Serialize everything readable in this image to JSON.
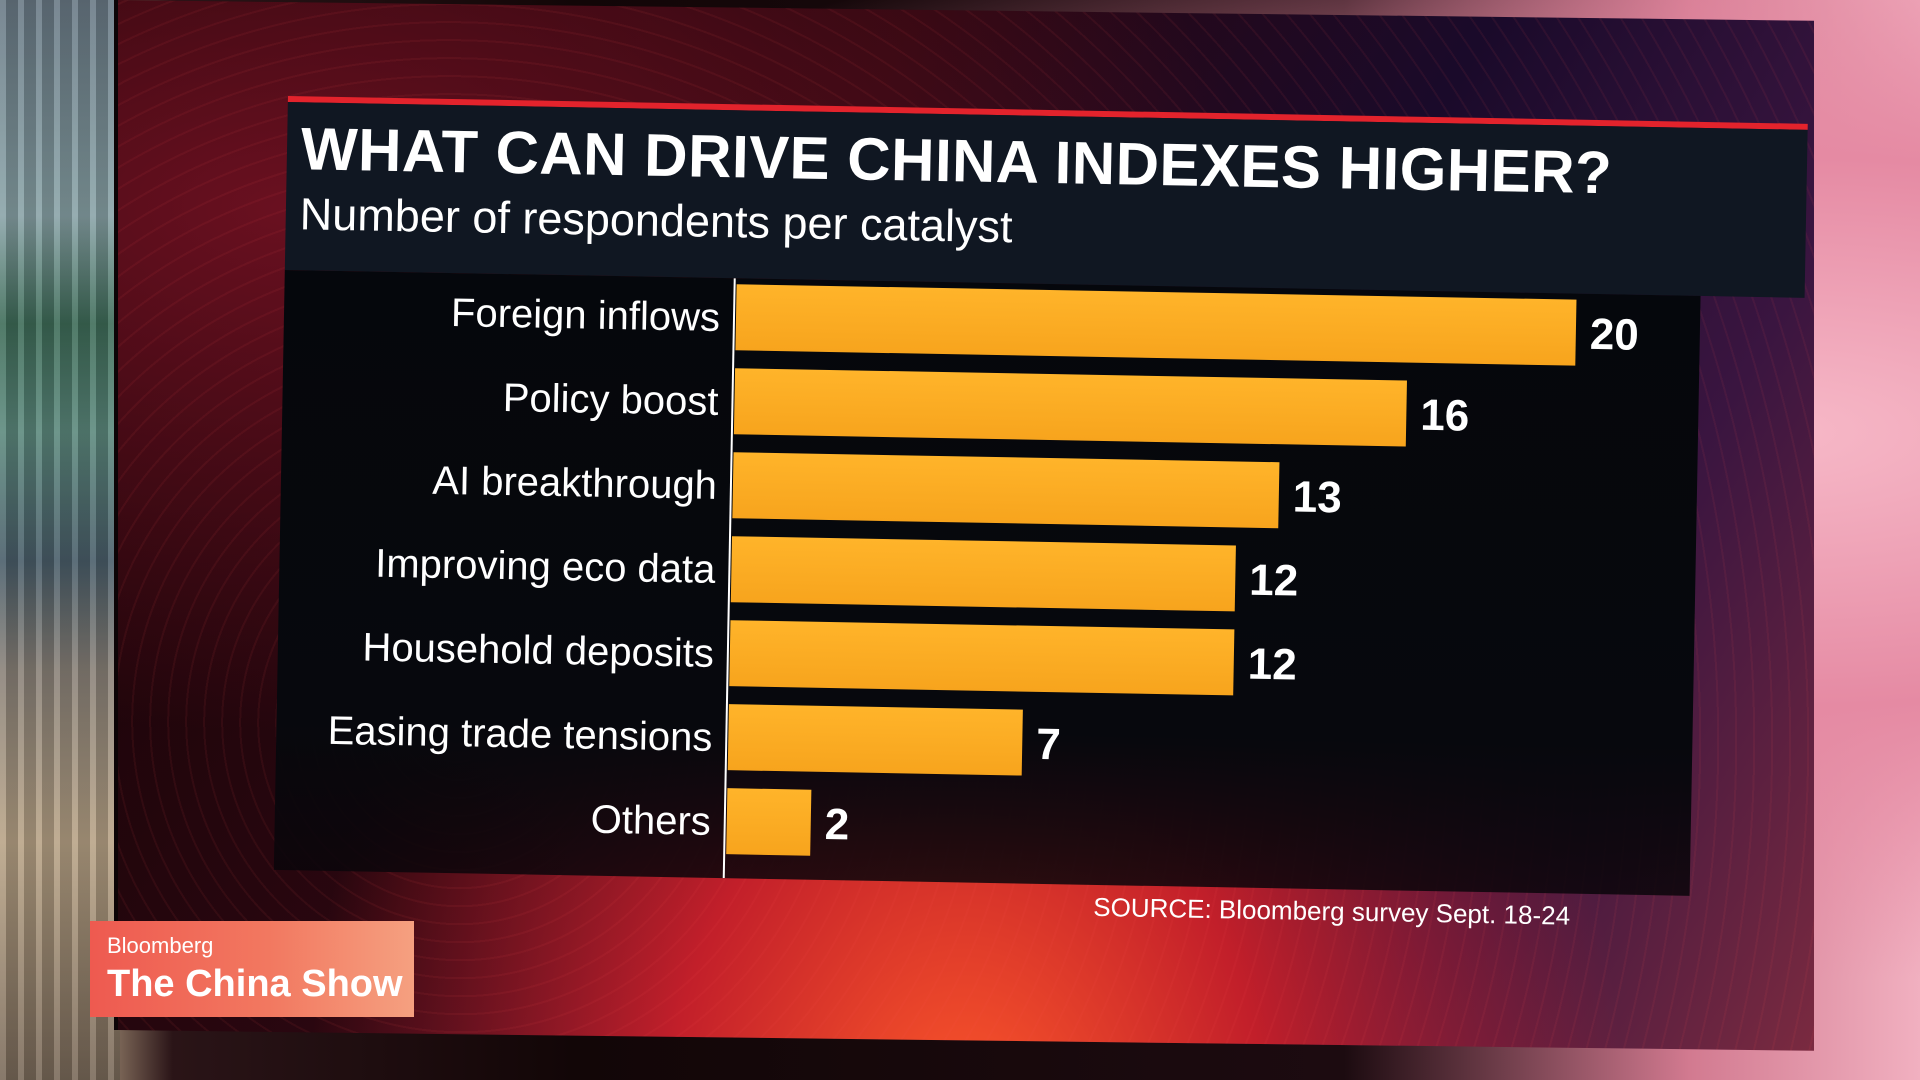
{
  "chart_data": {
    "type": "bar",
    "orientation": "horizontal",
    "title": "WHAT CAN DRIVE CHINA INDEXES HIGHER?",
    "subtitle": "Number of respondents per catalyst",
    "categories": [
      "Foreign inflows",
      "Policy boost",
      "AI breakthrough",
      "Improving eco data",
      "Household deposits",
      "Easing trade tensions",
      "Others"
    ],
    "values": [
      20,
      16,
      13,
      12,
      12,
      7,
      2
    ],
    "data_labels": [
      "20",
      "16",
      "13",
      "12",
      "12",
      "7",
      "2"
    ],
    "xlim": [
      0,
      20
    ],
    "grid": false,
    "source": "SOURCE: Bloomberg survey Sept. 18-24",
    "colors": {
      "bar": "#f7a41d",
      "bar_highlight": "#ffb42a",
      "header_bg": "#101722",
      "accent_rule": "#e3232c",
      "text": "#ffffff"
    }
  },
  "badge": {
    "brand": "Bloomberg",
    "show": "The China Show"
  }
}
